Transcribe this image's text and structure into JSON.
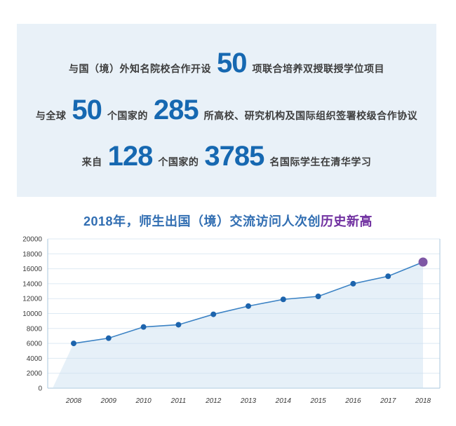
{
  "background_color": "#ffffff",
  "stats_box": {
    "bg_color": "#e9f1f8",
    "number_color": "#1668b1",
    "text_color": "#3d3d3d",
    "lines": [
      {
        "segments": [
          {
            "text": "与国（境）外知名院校合作开设",
            "emphasis": false
          },
          {
            "text": "50",
            "emphasis": true
          },
          {
            "text": "项联合培养双授联授学位项目",
            "emphasis": false
          }
        ]
      },
      {
        "segments": [
          {
            "text": "与全球",
            "emphasis": false
          },
          {
            "text": "50",
            "emphasis": true
          },
          {
            "text": "个国家的",
            "emphasis": false
          },
          {
            "text": "285",
            "emphasis": true
          },
          {
            "text": "所高校、研究机构及国际组织签署校级合作协议",
            "emphasis": false
          }
        ]
      },
      {
        "segments": [
          {
            "text": "来自",
            "emphasis": false
          },
          {
            "text": "128",
            "emphasis": true
          },
          {
            "text": "个国家的",
            "emphasis": false
          },
          {
            "text": "3785",
            "emphasis": true
          },
          {
            "text": "名国际学生在清华学习",
            "emphasis": false
          }
        ]
      }
    ]
  },
  "chart": {
    "title_blue": "2018年，师生出国（境）交流访问人次创",
    "title_purple": "历史新高",
    "title_blue_color": "#316eb2",
    "title_purple_color": "#7030a0"
  },
  "chart_data": {
    "type": "area",
    "title": "2018年，师生出国（境）交流访问人次创历史新高",
    "categories": [
      "2008",
      "2009",
      "2010",
      "2011",
      "2012",
      "2013",
      "2014",
      "2015",
      "2016",
      "2017",
      "2018"
    ],
    "values": [
      6000,
      6700,
      8200,
      8500,
      9900,
      11000,
      11900,
      12300,
      14000,
      15000,
      16900
    ],
    "xlabel": "",
    "ylabel": "",
    "ylim": [
      0,
      20000
    ],
    "yticks": [
      0,
      2000,
      4000,
      6000,
      8000,
      10000,
      12000,
      14000,
      16000,
      18000,
      20000
    ],
    "grid": true,
    "legend": "none",
    "highlight_last_point": true,
    "line_color": "#3b82c4",
    "marker_color": "#1d64ad",
    "highlight_marker_color": "#7e57a5",
    "area_fill_color": "rgba(199,221,240,0.45)",
    "grid_color": "#dde9f3",
    "axis_color": "#a9c7dd",
    "tick_label_color": "#3a3a3a"
  }
}
